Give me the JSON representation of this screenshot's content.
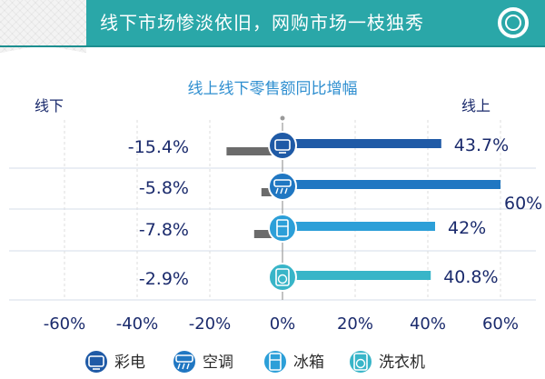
{
  "header": {
    "title": "线下市场惨淡依旧，网购市场一枝独秀"
  },
  "colors": {
    "header_band": "#2aa7a8",
    "online_series": [
      "#1f5aa6",
      "#2077c2",
      "#2c9fd8",
      "#38b5c8"
    ],
    "offline_series": "#6b6b6b",
    "axis_text": "#1a2a6c"
  },
  "chart_data": {
    "type": "bar",
    "orientation": "horizontal",
    "title": "线上线下零售额同比增幅",
    "left_label": "线下",
    "right_label": "线上",
    "categories": [
      "彩电",
      "空调",
      "冰箱",
      "洗衣机"
    ],
    "category_icons": [
      "tv-icon",
      "air-conditioner-icon",
      "refrigerator-icon",
      "washing-machine-icon"
    ],
    "series": [
      {
        "name": "线下",
        "values": [
          -15.4,
          -5.8,
          -7.8,
          -2.9
        ],
        "labels": [
          "-15.4%",
          "-5.8%",
          "-7.8%",
          "-2.9%"
        ]
      },
      {
        "name": "线上",
        "values": [
          43.7,
          60,
          42,
          40.8
        ],
        "labels": [
          "43.7%",
          "60%",
          "42%",
          "40.8%"
        ]
      }
    ],
    "xlim": [
      -60,
      60
    ],
    "x_ticks": [
      -60,
      -40,
      -20,
      0,
      20,
      40,
      60
    ],
    "x_tick_labels": [
      "-60%",
      "-40%",
      "-20%",
      "0%",
      "20%",
      "40%",
      "60%"
    ],
    "grid": "vertical",
    "legend": "bottom"
  }
}
